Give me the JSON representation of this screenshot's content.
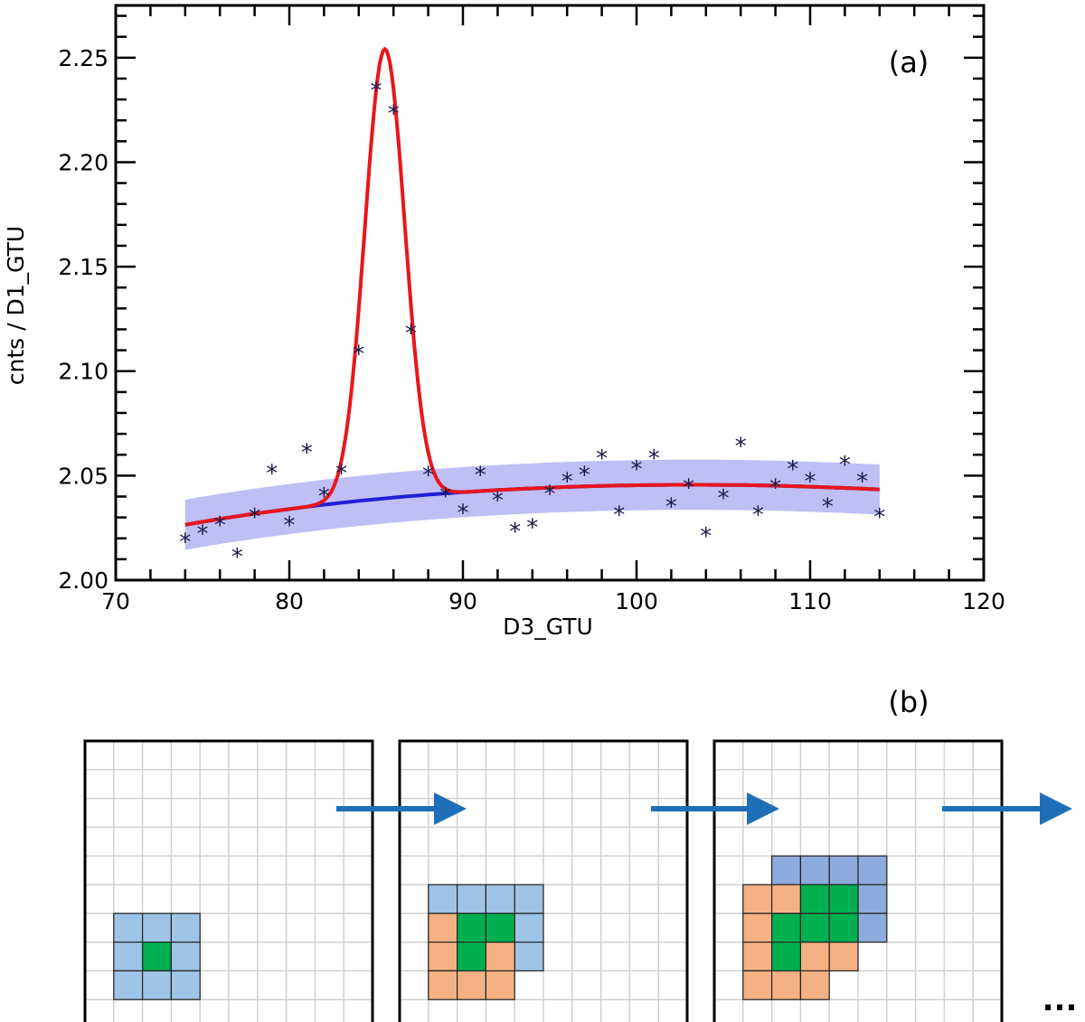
{
  "chart_data": {
    "type": "scatter",
    "panel_label": "(a)",
    "xlabel": "D3_GTU",
    "ylabel": "cnts / D1_GTU",
    "xlim": [
      70,
      120
    ],
    "ylim": [
      2.0,
      2.275
    ],
    "x_ticks": [
      "70",
      "80",
      "90",
      "100",
      "110",
      "120"
    ],
    "y_ticks": [
      "2.00",
      "2.05",
      "2.10",
      "2.15",
      "2.20",
      "2.25"
    ],
    "grid": false,
    "colors": {
      "fit": "#e8161b",
      "background": "#1f1fd6",
      "band": "#a9a9f2",
      "points": "#1a1a4a"
    },
    "series": [
      {
        "kind": "points",
        "marker": "*",
        "x": [
          74,
          75,
          76,
          77,
          78,
          79,
          80,
          81,
          82,
          83,
          84,
          85,
          86,
          87,
          88,
          89,
          90,
          91,
          92,
          93,
          94,
          95,
          96,
          97,
          98,
          99,
          100,
          101,
          102,
          103,
          104,
          105,
          106,
          107,
          108,
          109,
          110,
          111,
          112,
          113,
          114
        ],
        "y": [
          2.02,
          2.024,
          2.028,
          2.013,
          2.032,
          2.053,
          2.028,
          2.063,
          2.042,
          2.053,
          2.11,
          2.236,
          2.225,
          2.12,
          2.052,
          2.042,
          2.034,
          2.052,
          2.04,
          2.025,
          2.027,
          2.043,
          2.049,
          2.052,
          2.06,
          2.033,
          2.055,
          2.06,
          2.037,
          2.046,
          2.023,
          2.041,
          2.066,
          2.033,
          2.046,
          2.055,
          2.049,
          2.037,
          2.057,
          2.049,
          2.032
        ]
      },
      {
        "kind": "background-fit",
        "x": [
          74,
          76,
          78,
          80,
          82,
          84,
          86,
          88,
          90,
          92,
          94,
          96,
          98,
          100,
          102,
          104,
          106,
          108,
          110,
          112,
          114
        ],
        "y": [
          2.0265,
          2.0293,
          2.0318,
          2.034,
          2.0361,
          2.0379,
          2.0395,
          2.0409,
          2.0421,
          2.0431,
          2.0439,
          2.0446,
          2.0451,
          2.0454,
          2.0456,
          2.0456,
          2.0455,
          2.0452,
          2.0447,
          2.0441,
          2.0434
        ],
        "band_halfwidth": 0.012
      },
      {
        "kind": "peak-fit",
        "peak_center": 85.5,
        "peak_amplitude": 0.215,
        "peak_sigma": 1.15
      }
    ]
  },
  "diagram": {
    "panel_label": "(b)",
    "ellipsis": "...",
    "colors": {
      "center": "#00b050",
      "blue": "#9dc3e6",
      "orange": "#f4b183",
      "navy": "#8faadc",
      "grid": "#d0d0d0"
    }
  }
}
